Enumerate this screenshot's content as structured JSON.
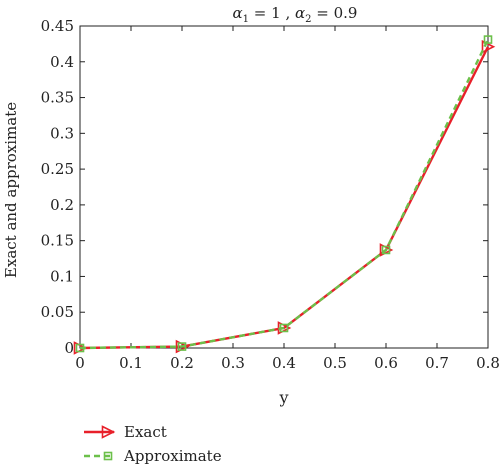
{
  "chart_data": {
    "type": "line",
    "title": {
      "alpha": "α",
      "sub1": "1",
      "mid": " = 1 , ",
      "sub2": "2",
      "end": " = 0.9"
    },
    "xlabel": "y",
    "ylabel": "Exact and approximate",
    "xlim": [
      0,
      0.8
    ],
    "ylim": [
      0,
      0.45
    ],
    "xticks": [
      0,
      0.1,
      0.2,
      0.3,
      0.4,
      0.5,
      0.6,
      0.7,
      0.8
    ],
    "xtick_labels": [
      "0",
      "0.1",
      "0.2",
      "0.3",
      "0.4",
      "0.5",
      "0.6",
      "0.7",
      "0.8"
    ],
    "yticks": [
      0,
      0.05,
      0.1,
      0.15,
      0.2,
      0.25,
      0.3,
      0.35,
      0.4,
      0.45
    ],
    "ytick_labels": [
      "0",
      "0.05",
      "0.1",
      "0.15",
      "0.2",
      "0.25",
      "0.3",
      "0.35",
      "0.4",
      "0.45"
    ],
    "grid": false,
    "legend_position": "bottom-left, below plot",
    "series": [
      {
        "name": "Exact",
        "x": [
          0,
          0.2,
          0.4,
          0.6,
          0.8
        ],
        "y": [
          0,
          0.002,
          0.028,
          0.137,
          0.421
        ],
        "color": "#e8202a",
        "line_style": "solid",
        "marker": "right-triangle"
      },
      {
        "name": "Approximate",
        "x": [
          0,
          0.2,
          0.4,
          0.6,
          0.8
        ],
        "y": [
          0,
          0.002,
          0.028,
          0.137,
          0.431
        ],
        "color": "#6cc04a",
        "line_style": "dashed",
        "marker": "square"
      }
    ]
  }
}
